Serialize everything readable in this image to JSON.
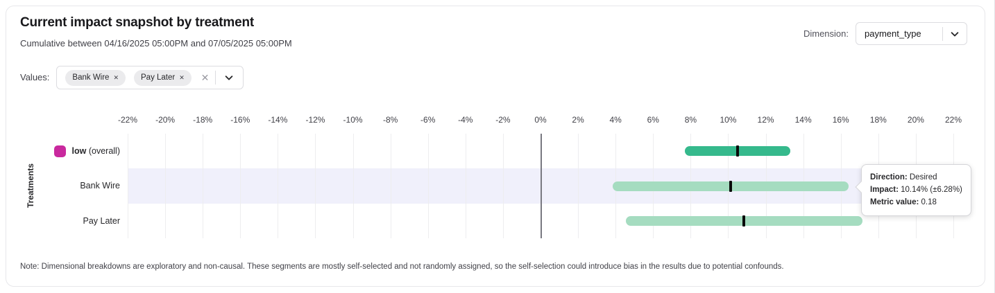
{
  "header": {
    "title": "Current impact snapshot by treatment",
    "subtitle": "Cumulative between 04/16/2025 05:00PM and 07/05/2025 05:00PM",
    "dimension_label": "Dimension:",
    "dimension_value": "payment_type"
  },
  "filters": {
    "values_label": "Values:",
    "chips": [
      {
        "label": "Bank Wire",
        "remove_icon": "✕"
      },
      {
        "label": "Pay Later",
        "remove_icon": "✕"
      }
    ],
    "clear_icon": "✕"
  },
  "chart_data": {
    "type": "bar",
    "subtype": "horizontal-interval-error-bars",
    "ylabel": "Treatments",
    "x_axis": {
      "min": -22,
      "max": 22,
      "tick_step": 2,
      "unit": "%",
      "tick_labels": [
        "-22%",
        "-20%",
        "-18%",
        "-16%",
        "-14%",
        "-12%",
        "-10%",
        "-8%",
        "-6%",
        "-4%",
        "-2%",
        "0%",
        "2%",
        "4%",
        "6%",
        "8%",
        "10%",
        "12%",
        "14%",
        "16%",
        "18%",
        "20%",
        "22%"
      ],
      "grid": true,
      "zero_line": true
    },
    "rows": [
      {
        "label": "low",
        "suffix": " (overall)",
        "bold": true,
        "legend_color": "#c9299e",
        "bar_color": "#35b98c",
        "impact": 10.5,
        "ci_low": 7.7,
        "ci_high": 13.3,
        "highlighted": false
      },
      {
        "label": "Bank Wire",
        "suffix": "",
        "bold": false,
        "legend_color": null,
        "bar_color": "#a5dcc0",
        "impact": 10.14,
        "ci_low": 3.86,
        "ci_high": 16.42,
        "highlighted": true
      },
      {
        "label": "Pay Later",
        "suffix": "",
        "bold": false,
        "legend_color": null,
        "bar_color": "#a5dcc0",
        "impact": 10.85,
        "ci_low": 4.55,
        "ci_high": 17.15,
        "highlighted": false
      }
    ]
  },
  "tooltip": {
    "direction_label": "Direction:",
    "direction_value": "Desired",
    "impact_label": "Impact:",
    "impact_value": "10.14% (±6.28%)",
    "metric_label": "Metric value:",
    "metric_value": "0.18"
  },
  "note": "Note: Dimensional breakdowns are exploratory and non-causal. These segments are mostly self-selected and not randomly assigned, so the self-selection could introduce bias in the results due to potential confounds."
}
